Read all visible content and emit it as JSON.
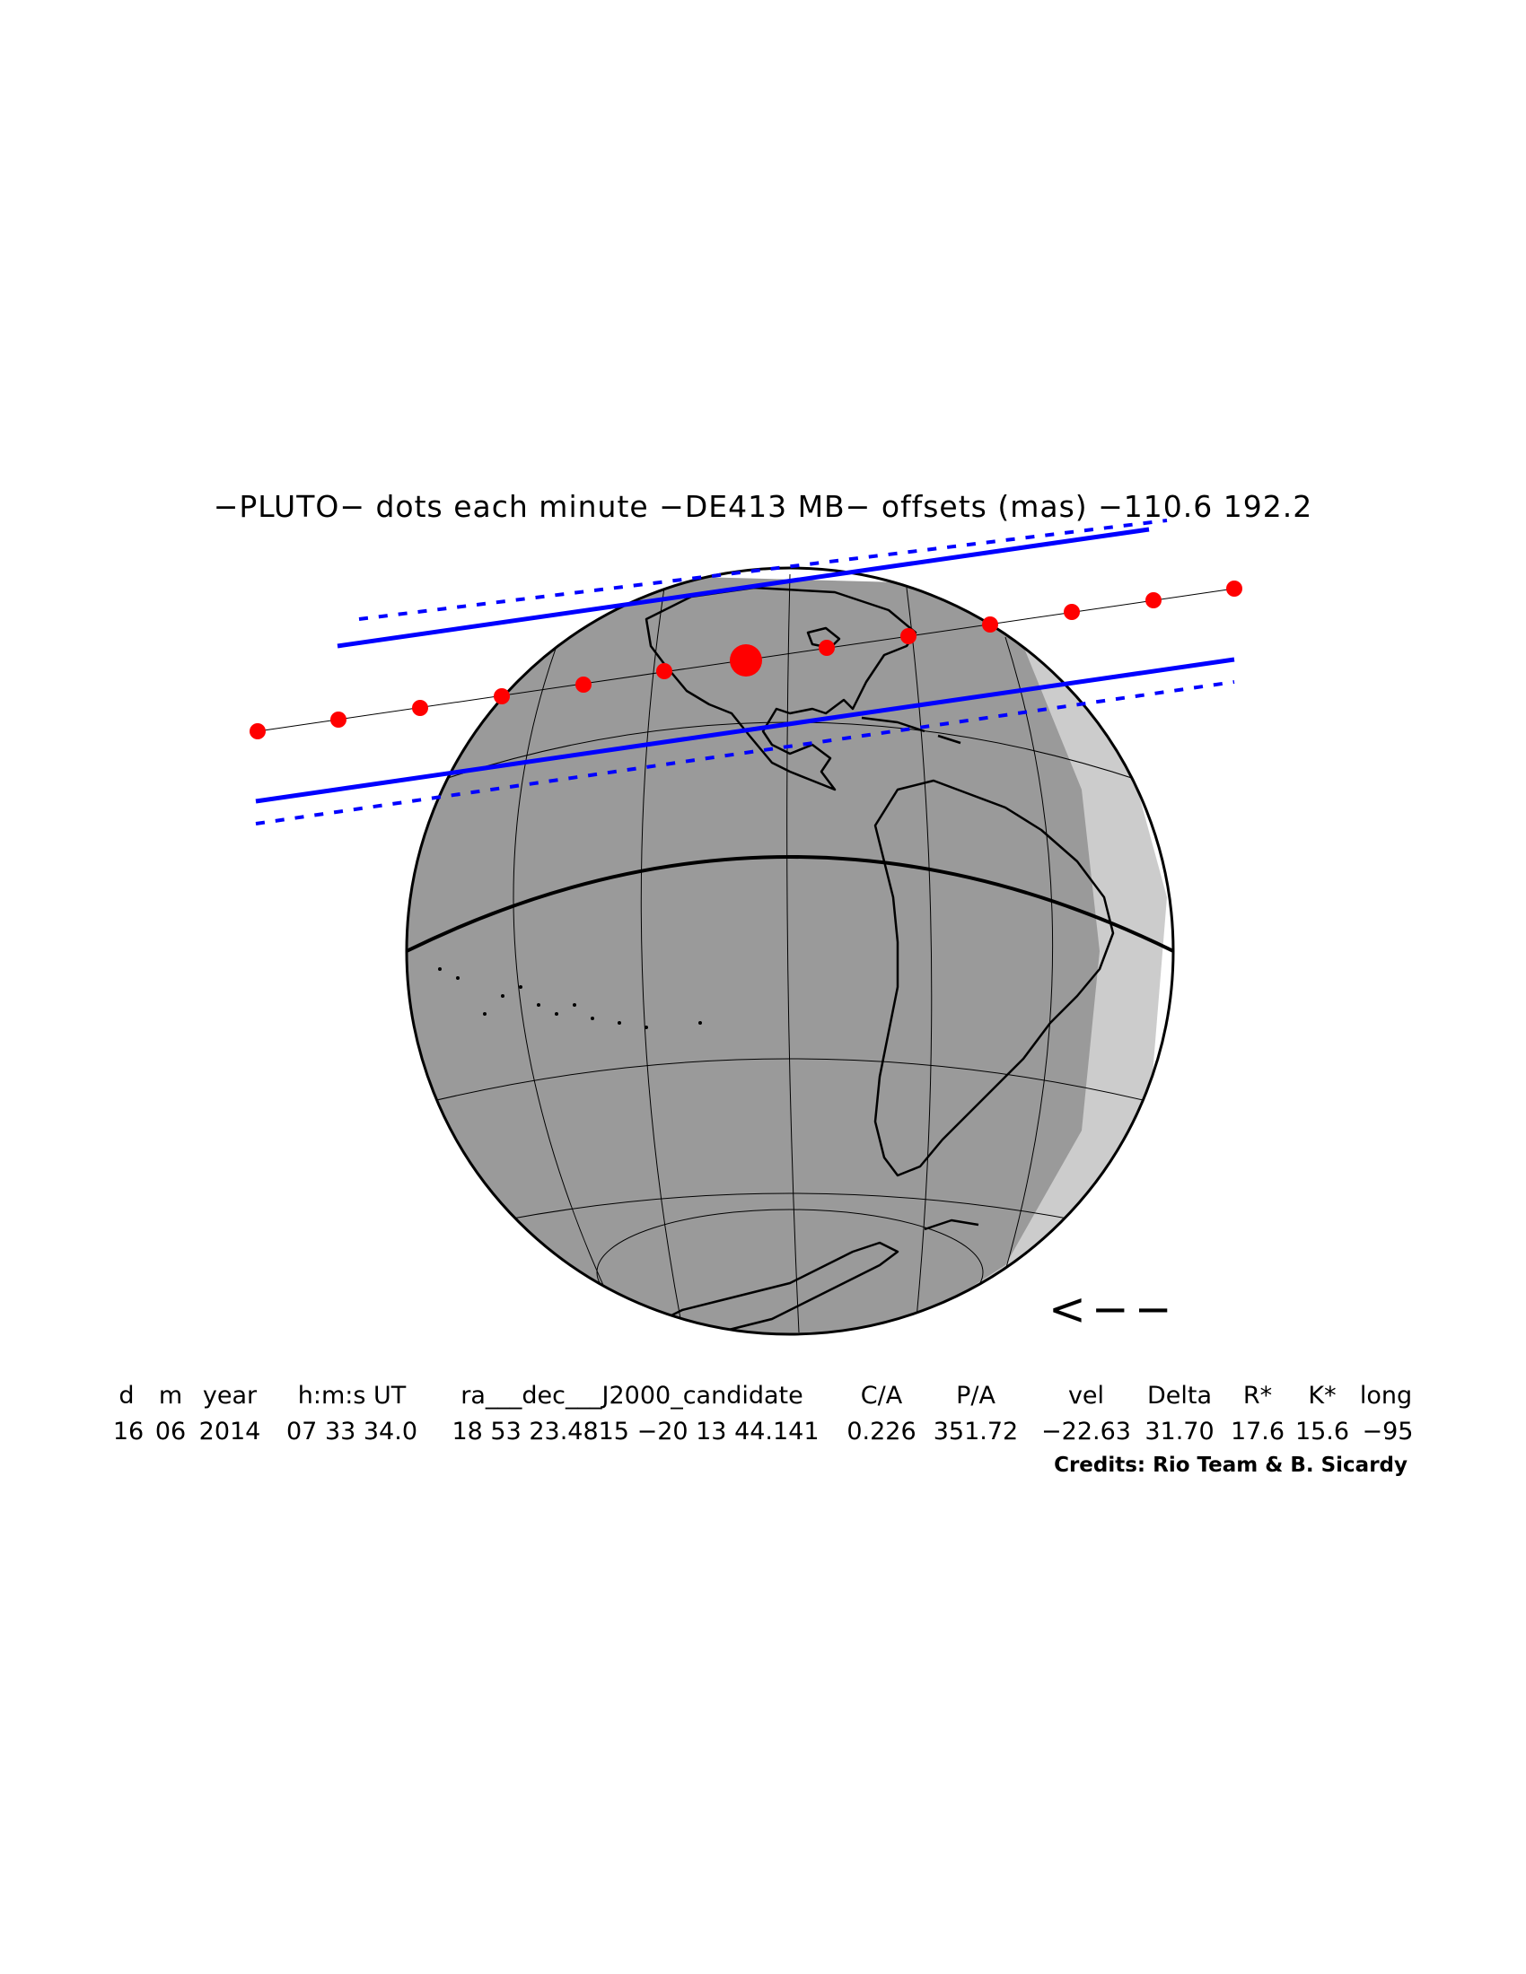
{
  "title": "−PLUTO− dots each minute −DE413 MB− offsets (mas) −110.6   192.2",
  "direction_arrow": "<−−",
  "credits": "Credits: Rio Team & B. Sicardy",
  "table": {
    "headers": [
      "d",
      "m",
      "year",
      "h:m:s UT",
      "ra___dec___J2000_candidate",
      "C/A",
      "P/A",
      "vel",
      "Delta",
      "R*",
      "K*",
      "long"
    ],
    "values": [
      "16",
      "06",
      "2014",
      "07 33 34.0",
      "18 53 23.4815 −20 13 44.141",
      "0.226",
      "351.72",
      "−22.63",
      "31.70",
      "17.6",
      "15.6",
      "−95"
    ]
  },
  "colors": {
    "night": "#9a9a9a",
    "twilight": "#cccccc",
    "day": "#ffffff",
    "shadow_path": "#0000ff",
    "centerline_dots": "#ff0000",
    "coastlines": "#000000"
  }
}
